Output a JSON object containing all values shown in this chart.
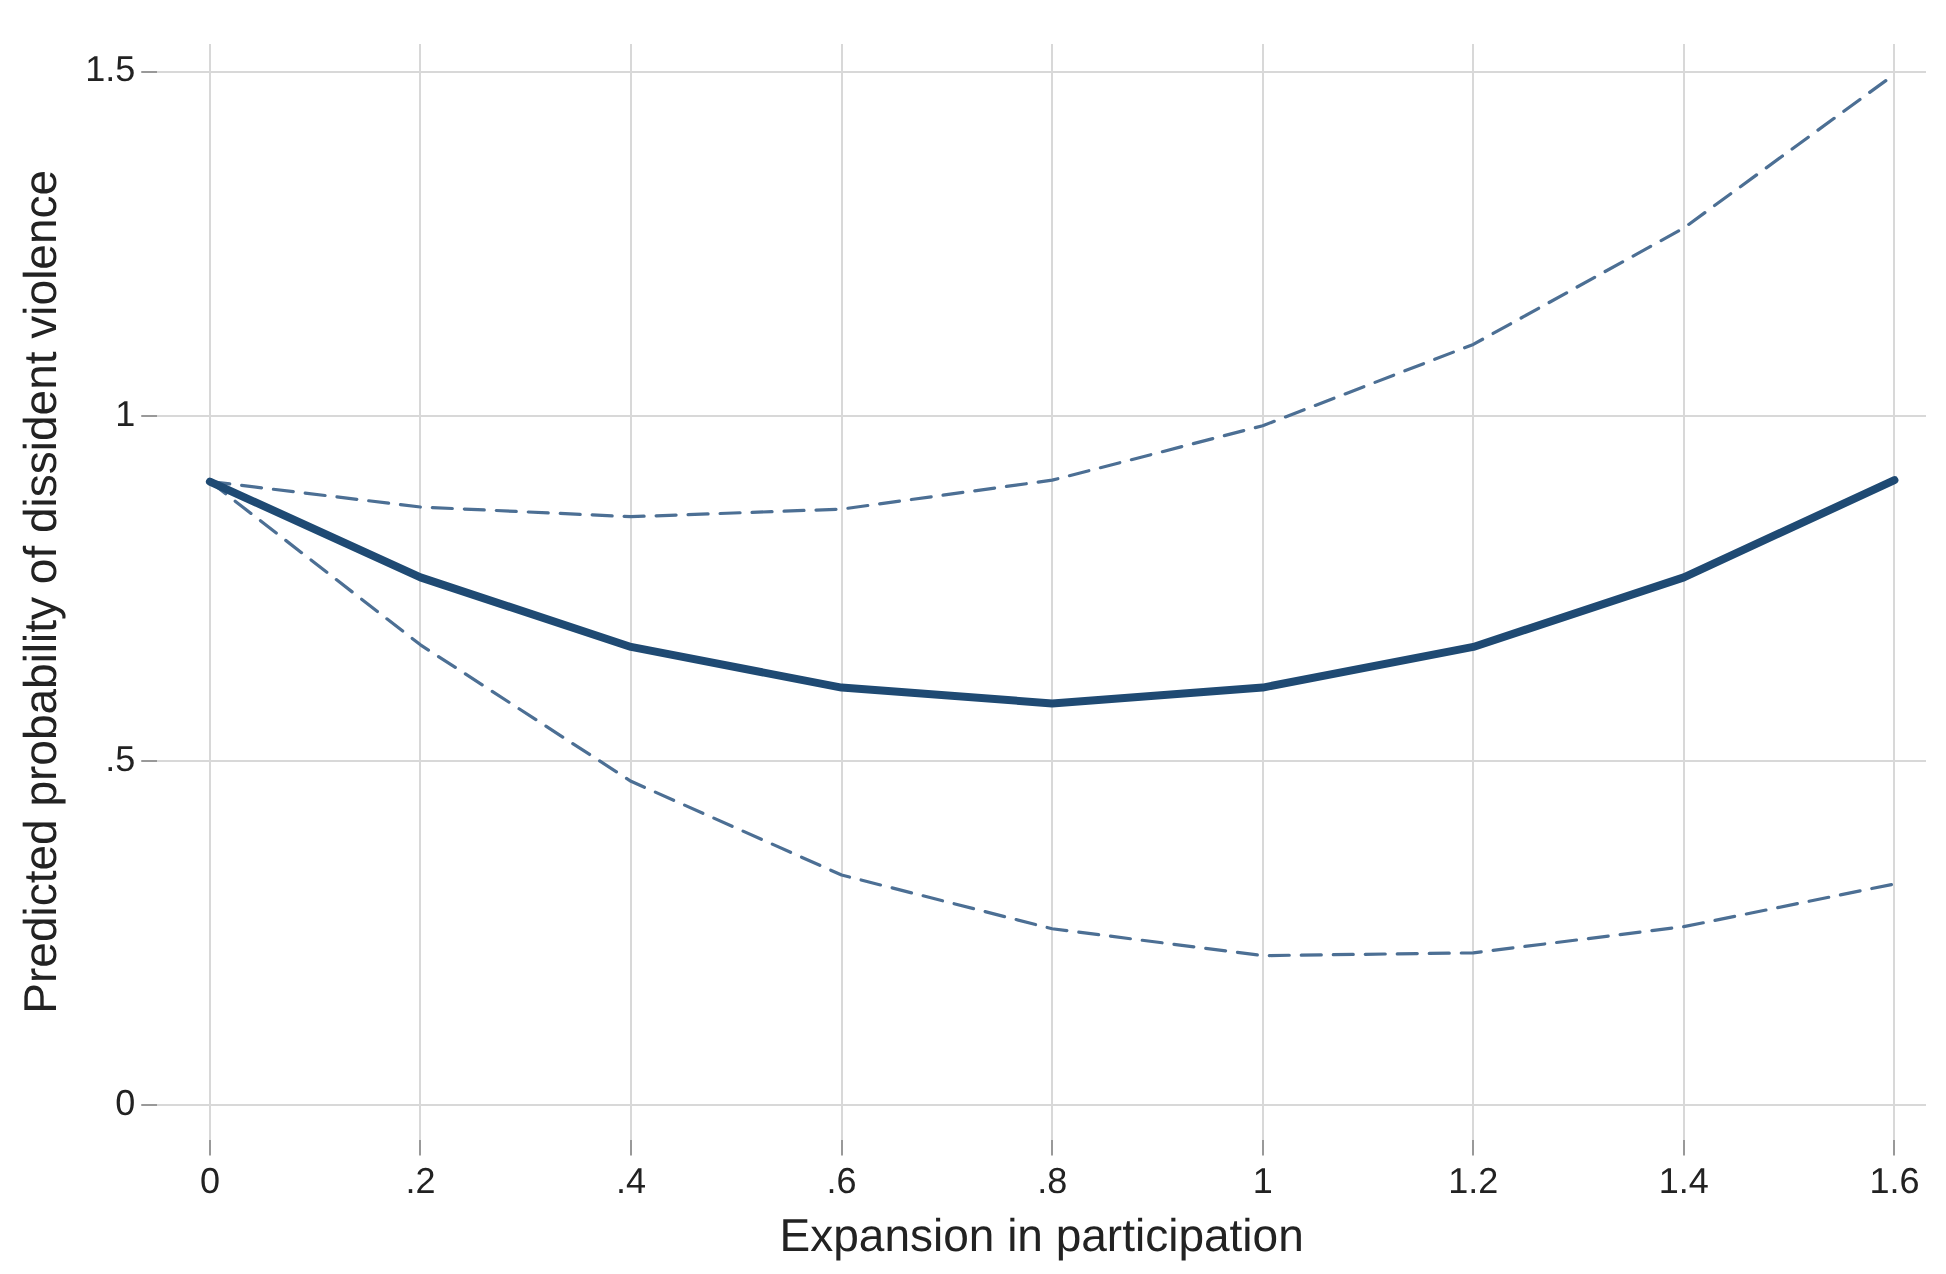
{
  "chart_data": {
    "type": "line",
    "xlabel": "Expansion in participation",
    "ylabel": "Predicted probability of dissident violence",
    "x": [
      0,
      0.2,
      0.4,
      0.6,
      0.8,
      1,
      1.2,
      1.4,
      1.6
    ],
    "series": [
      {
        "color": "#1f4a73",
        "line_style": "solid",
        "values": [
          0.905,
          0.766,
          0.665,
          0.606,
          0.583,
          0.606,
          0.665,
          0.766,
          0.907
        ]
      },
      {
        "color": "#4c6f94",
        "line_style": "dashed",
        "values": [
          0.905,
          0.868,
          0.854,
          0.865,
          0.907,
          0.986,
          1.104,
          1.273,
          1.496
        ]
      },
      {
        "color": "#4c6f94",
        "line_style": "dashed",
        "values": [
          0.905,
          0.668,
          0.47,
          0.334,
          0.256,
          0.217,
          0.221,
          0.259,
          0.321
        ]
      }
    ],
    "xlim": [
      -0.05,
      1.63
    ],
    "ylim": [
      -0.05,
      1.54
    ],
    "xticks": [
      0,
      {
        "value": 0.2,
        "label": ".2"
      },
      {
        "value": 0.4,
        "label": ".4"
      },
      {
        "value": 0.6,
        "label": ".6"
      },
      {
        "value": 0.8,
        "label": ".8"
      },
      1,
      1.2,
      1.4,
      1.6
    ],
    "yticks": [
      0,
      {
        "value": 0.5,
        "label": ".5"
      },
      1,
      1.5
    ],
    "grid": true,
    "marker": "none"
  }
}
